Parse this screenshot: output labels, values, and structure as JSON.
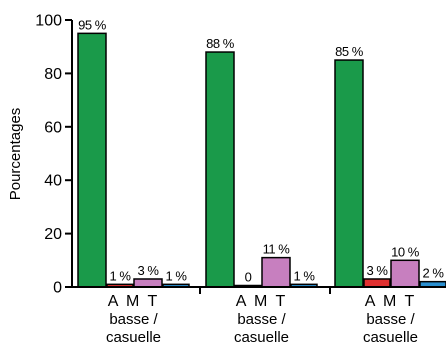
{
  "chart_data": {
    "type": "bar",
    "title": "",
    "xlabel": "",
    "ylabel": "Pourcentages",
    "ylim": [
      0,
      100
    ],
    "yticks": [
      0,
      20,
      40,
      60,
      80,
      100
    ],
    "grid": false,
    "legend": "none",
    "categories": [
      {
        "line1": "A M T",
        "line2": "basse /",
        "line3": "casuelle"
      },
      {
        "line1": "A M T",
        "line2": "basse /",
        "line3": "casuelle"
      },
      {
        "line1": "A M T",
        "line2": "basse /",
        "line3": "casuelle"
      }
    ],
    "series": [
      {
        "color": "#1a9a4a",
        "values": [
          95,
          88,
          85
        ],
        "labels": [
          "95 %",
          "88 %",
          "85 %"
        ]
      },
      {
        "color": "#e03030",
        "values": [
          1,
          0,
          3
        ],
        "labels": [
          "1 %",
          "0",
          "3 %"
        ]
      },
      {
        "color": "#c77fbf",
        "values": [
          3,
          11,
          10
        ],
        "labels": [
          "3 %",
          "11 %",
          "10 %"
        ]
      },
      {
        "color": "#2a8fd0",
        "values": [
          1,
          1,
          2
        ],
        "labels": [
          "1 %",
          "1 %",
          "2 %"
        ]
      }
    ]
  }
}
